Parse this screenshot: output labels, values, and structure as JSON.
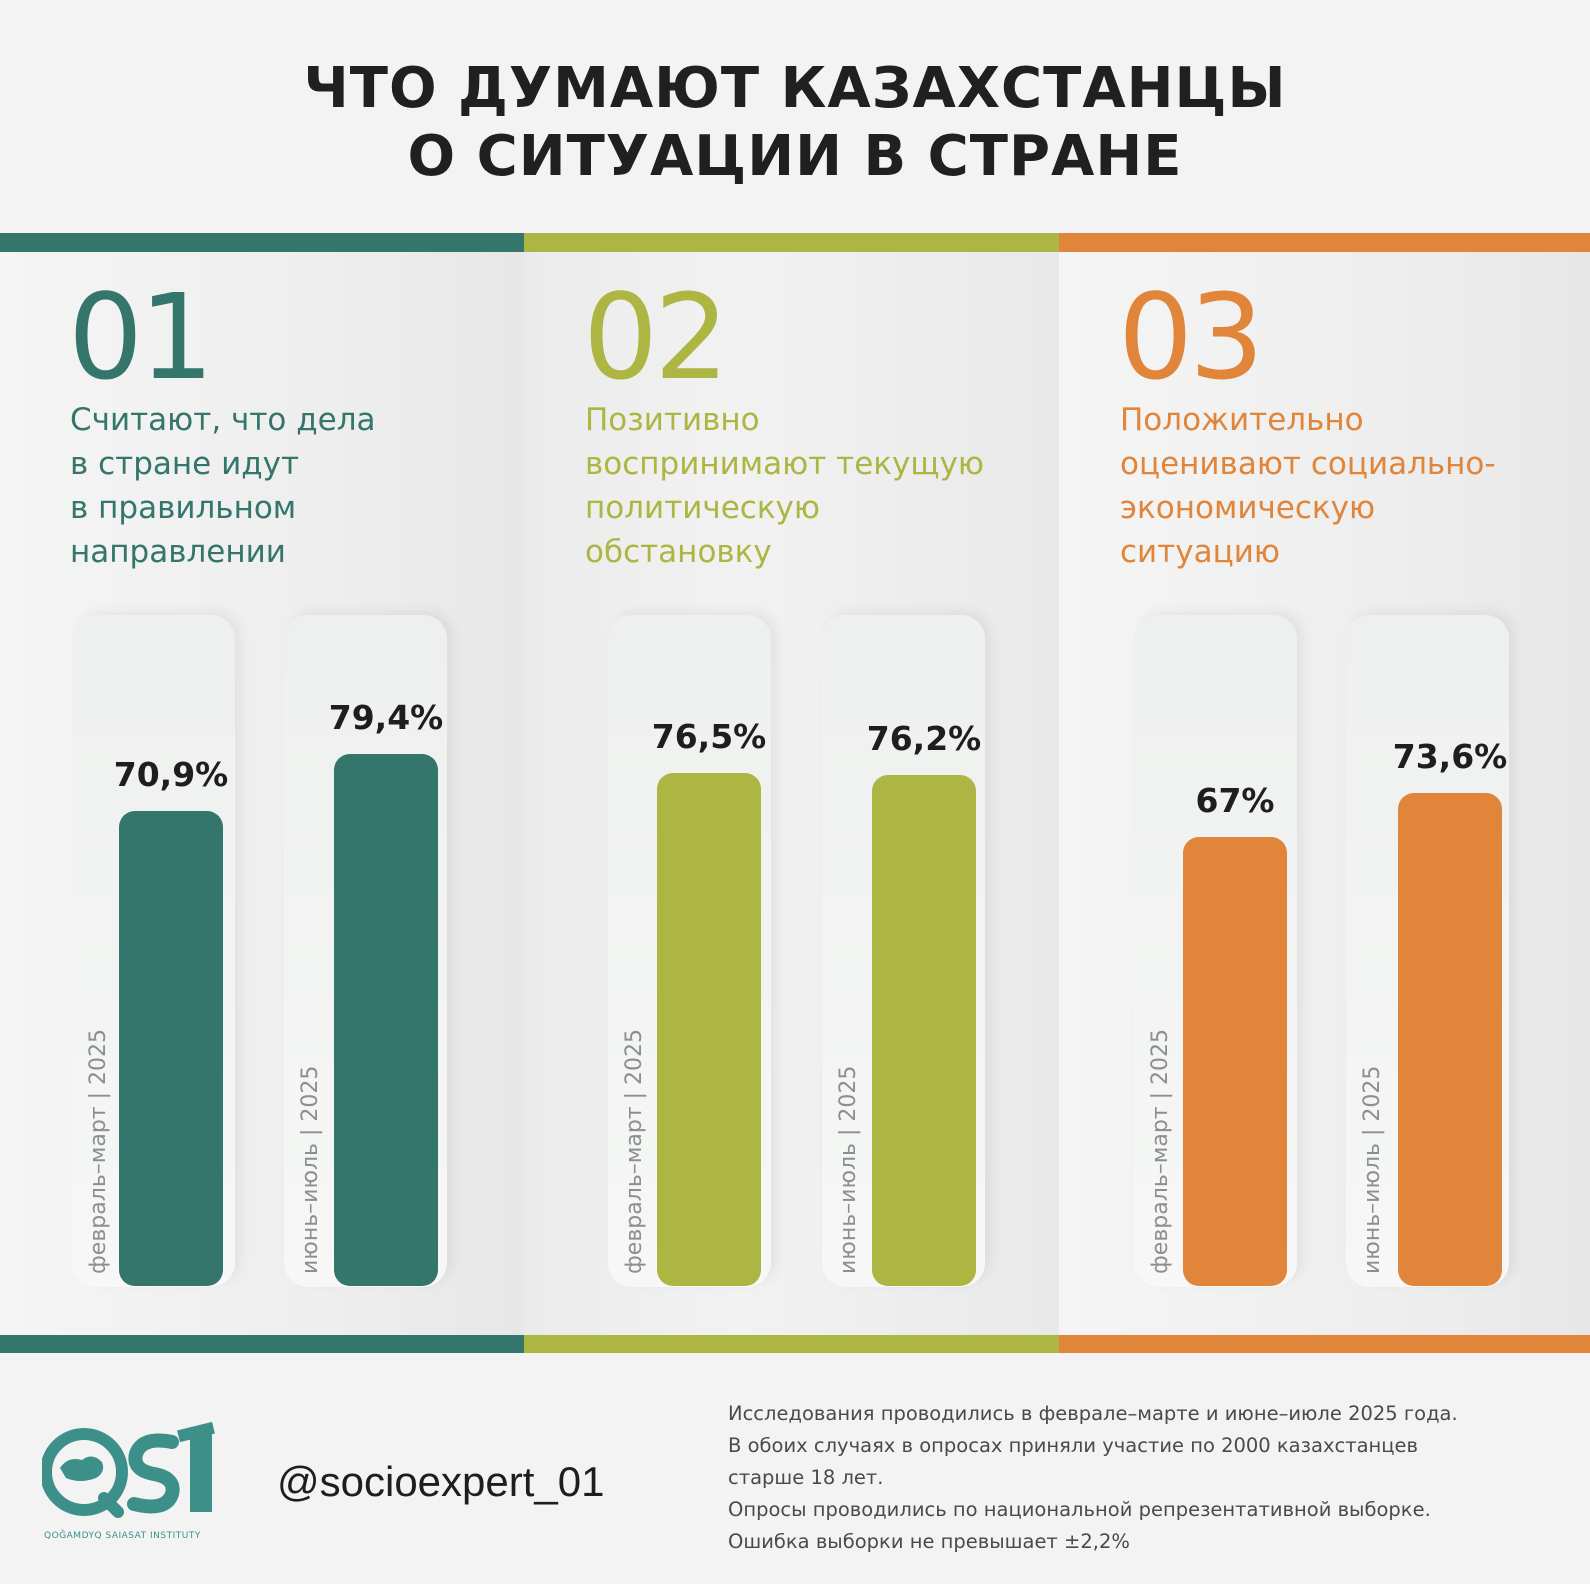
{
  "title_lines": [
    "ЧТО ДУМАЮТ КАЗАХСТАНЦЫ",
    "О СИТУАЦИИ В СТРАНЕ"
  ],
  "colors": {
    "teal": "#34766b",
    "olive": "#adb543",
    "orange": "#e0853a"
  },
  "chart_data": {
    "type": "bar",
    "title": "ЧТО ДУМАЮТ КАЗАХСТАНЦЫ О СИТУАЦИИ В СТРАНЕ",
    "categories": [
      "февраль–март | 2025",
      "июнь–июль | 2025"
    ],
    "unit": "%",
    "ylim": [
      0,
      100
    ],
    "panels": [
      {
        "number": "01",
        "label_lines": [
          "Считают, что дела",
          "в стране идут",
          "в правильном",
          "направлении"
        ],
        "color": "#34766b",
        "values": [
          70.9,
          79.4
        ],
        "value_labels": [
          "70,9%",
          "79,4%"
        ]
      },
      {
        "number": "02",
        "label_lines": [
          "Позитивно",
          "воспринимают текущую",
          "политическую",
          "обстановку"
        ],
        "color": "#adb543",
        "values": [
          76.5,
          76.2
        ],
        "value_labels": [
          "76,5%",
          "76,2%"
        ]
      },
      {
        "number": "03",
        "label_lines": [
          "Положительно",
          "оценивают социально-",
          "экономическую",
          "ситуацию"
        ],
        "color": "#e0853a",
        "values": [
          67,
          73.6
        ],
        "value_labels": [
          "67%",
          "73,6%"
        ]
      }
    ]
  },
  "footer": {
    "logo_text": "QSI",
    "logo_subtitle": "QOĞAMDYQ SAIASAT INSTITUTY",
    "handle": "@socioexpert_01",
    "note_lines": [
      "Исследования проводились в феврале–марте и июне–июле 2025 года.",
      "В обоих случаях в опросах приняли участие по 2000 казахстанцев",
      "старше 18 лет.",
      "Опросы проводились по национальной репрезентативной выборке.",
      "Ошибка выборки не превышает  ±2,2%"
    ]
  }
}
